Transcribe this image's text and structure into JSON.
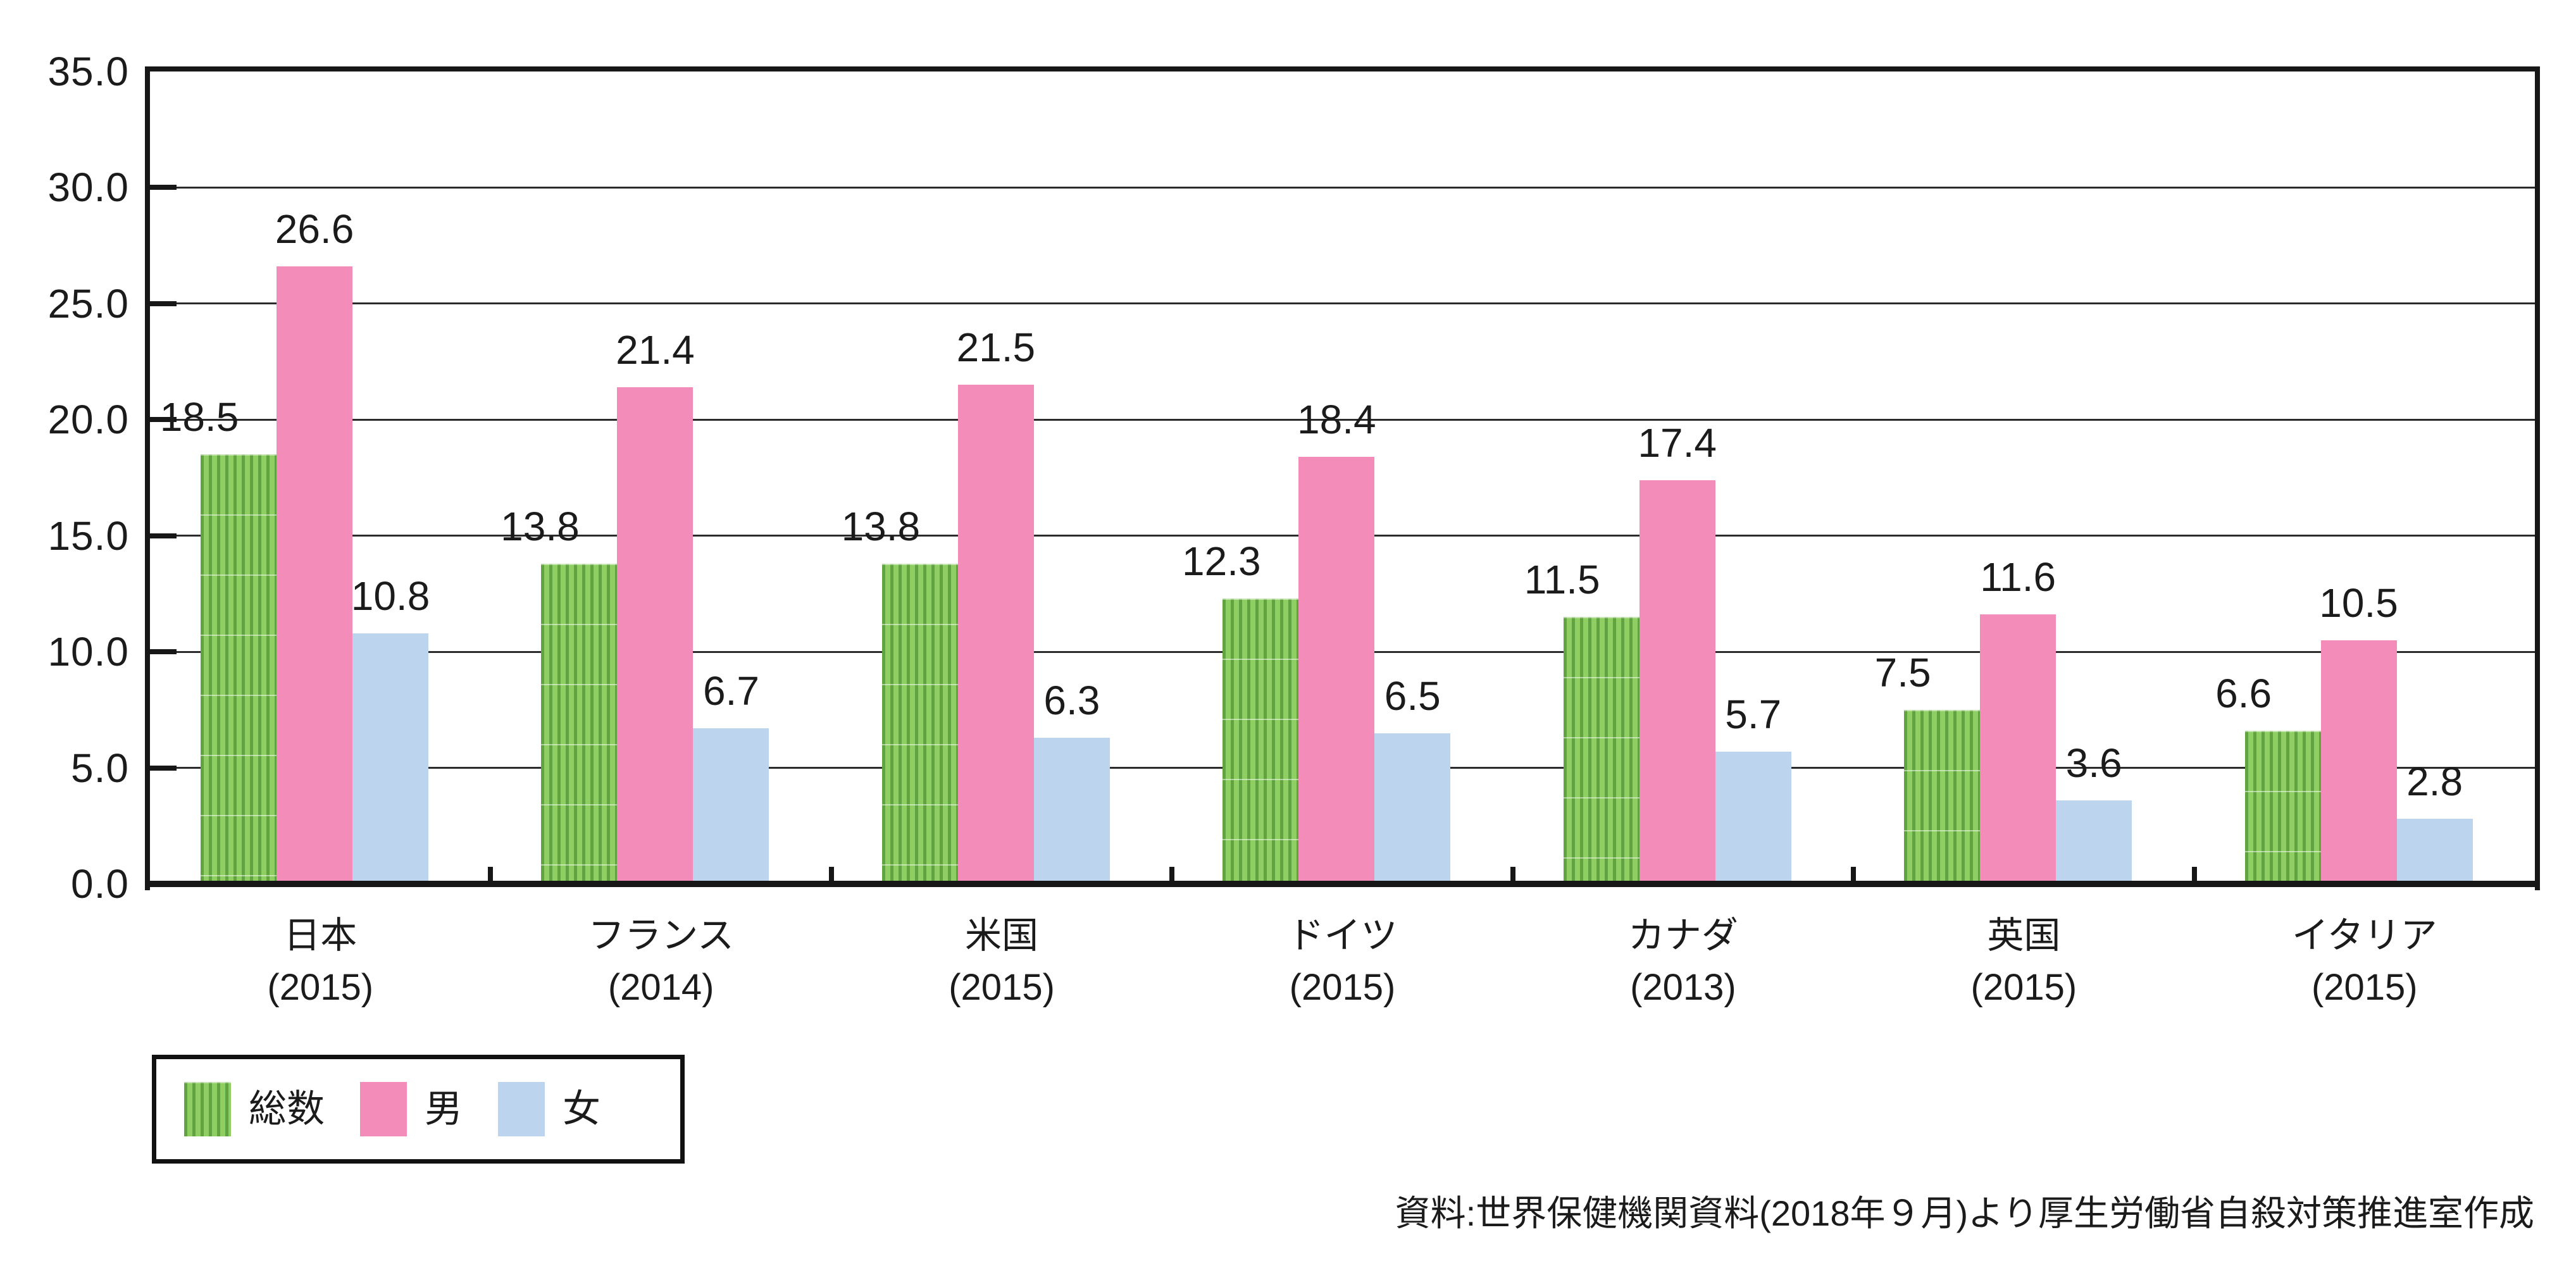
{
  "chart_data": {
    "type": "bar",
    "title": "",
    "categories": [
      {
        "label": "日本",
        "year": "(2015)"
      },
      {
        "label": "フランス",
        "year": "(2014)"
      },
      {
        "label": "米国",
        "year": "(2015)"
      },
      {
        "label": "ドイツ",
        "year": "(2015)"
      },
      {
        "label": "カナダ",
        "year": "(2013)"
      },
      {
        "label": "英国",
        "year": "(2015)"
      },
      {
        "label": "イタリア",
        "year": "(2015)"
      }
    ],
    "series": [
      {
        "name": "総数",
        "pattern": "vertical-stripes",
        "color": "#8FCE63",
        "stripe_color": "#61A341",
        "values": [
          18.5,
          13.8,
          13.8,
          12.3,
          11.5,
          7.5,
          6.6
        ]
      },
      {
        "name": "男",
        "pattern": "solid",
        "color": "#F48CBA",
        "values": [
          26.6,
          21.4,
          21.5,
          18.4,
          17.4,
          11.6,
          10.5
        ]
      },
      {
        "name": "女",
        "pattern": "solid",
        "color": "#BDD4EE",
        "values": [
          10.8,
          6.7,
          6.3,
          6.5,
          5.7,
          3.6,
          2.8
        ]
      }
    ],
    "y_axis": {
      "min": 0,
      "max": 35,
      "step": 5,
      "tick_labels": [
        "0.0",
        "5.0",
        "10.0",
        "15.0",
        "20.0",
        "25.0",
        "30.0",
        "35.0"
      ]
    },
    "grid": true,
    "value_labels_shown": true,
    "legend": {
      "position": "bottom-left",
      "labels": [
        "総数",
        "男",
        "女"
      ]
    },
    "source": "資料:世界保健機関資料(2018年９月)より厚生労働省自殺対策推進室作成"
  },
  "colors": {
    "background": "#ffffff",
    "axis": "#171717",
    "grid": "#2b2b2b",
    "text": "#1b1b1b"
  }
}
